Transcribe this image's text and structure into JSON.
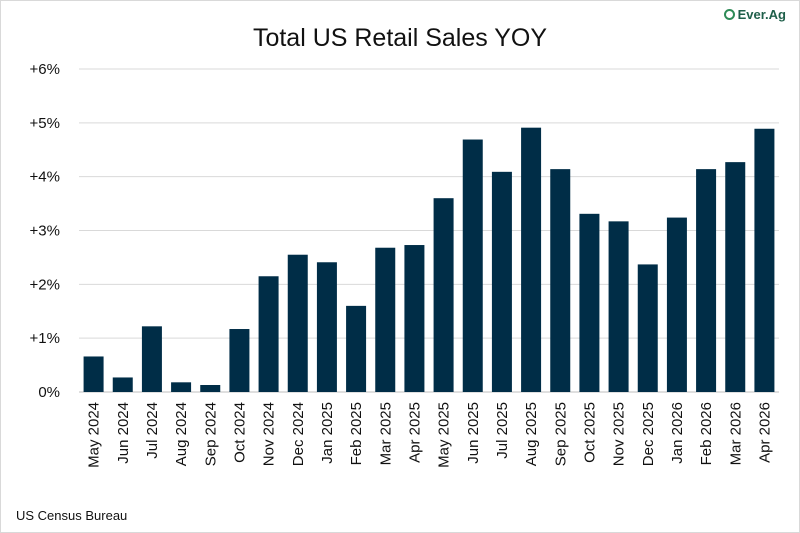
{
  "chart_data": {
    "type": "bar",
    "title": "Total US Retail Sales YOY",
    "source": "US Census Bureau",
    "categories": [
      "May 2024",
      "Jun 2024",
      "Jul 2024",
      "Aug 2024",
      "Sep 2024",
      "Oct 2024",
      "Nov 2024",
      "Dec 2024",
      "Jan 2025",
      "Feb 2025",
      "Mar 2025",
      "Apr 2025",
      "May 2025",
      "Jun 2025",
      "Jul 2025",
      "Aug 2025",
      "Sep 2025",
      "Oct 2025",
      "Nov 2025",
      "Dec 2025",
      "Jan 2026",
      "Feb 2026",
      "Mar 2026",
      "Apr 2026"
    ],
    "values": [
      0.66,
      0.27,
      1.22,
      0.18,
      0.13,
      1.17,
      2.15,
      2.55,
      2.41,
      1.6,
      2.68,
      2.73,
      3.6,
      4.69,
      4.09,
      4.91,
      4.14,
      3.31,
      3.17,
      2.37,
      3.24,
      4.14,
      4.27,
      4.89
    ],
    "yticks": [
      "0%",
      "+1%",
      "+2%",
      "+3%",
      "+4%",
      "+5%",
      "+6%"
    ],
    "ylim": [
      0,
      6
    ],
    "grid": true,
    "bar_color": "#002d47",
    "xlabel": "",
    "ylabel": ""
  },
  "logo": {
    "text": "Ever.Ag",
    "color": "#1f5f4a"
  }
}
